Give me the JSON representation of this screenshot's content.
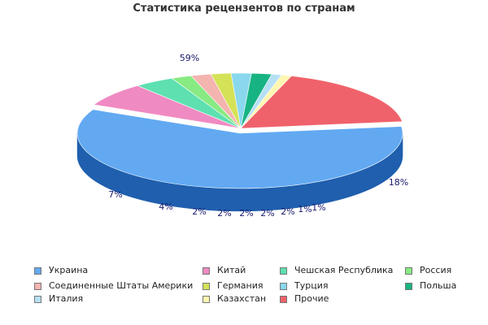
{
  "chart_data": {
    "type": "pie",
    "title": "Статистика рецензентов по странам",
    "slices": [
      {
        "label": "Украина",
        "value": 59,
        "display": "59%",
        "color": "#62a9f2",
        "dark": "#1f5fae"
      },
      {
        "label": "Китай",
        "value": 7,
        "display": "7%",
        "color": "#f08ac2",
        "dark": "#b3336f"
      },
      {
        "label": "Чешская Республика",
        "value": 4,
        "display": "4%",
        "color": "#5ee0b0",
        "dark": "#12884f"
      },
      {
        "label": "Россия",
        "value": 2,
        "display": "2%",
        "color": "#88ea82",
        "dark": "#3a962d"
      },
      {
        "label": "Соединенные Штаты Америки",
        "value": 2,
        "display": "2%",
        "color": "#f4b4b0",
        "dark": "#a85e5a"
      },
      {
        "label": "Германия",
        "value": 2,
        "display": "2%",
        "color": "#d4e257",
        "dark": "#80890c"
      },
      {
        "label": "Турция",
        "value": 2,
        "display": "2%",
        "color": "#8ad8ee",
        "dark": "#2d8aa2"
      },
      {
        "label": "Польша",
        "value": 2,
        "display": "2%",
        "color": "#18b383",
        "dark": "#09643f"
      },
      {
        "label": "Италия",
        "value": 1,
        "display": "1%",
        "color": "#b6e0f5",
        "dark": "#5a8ea6"
      },
      {
        "label": "Казахстан",
        "value": 1,
        "display": "1%",
        "color": "#fff6b0",
        "dark": "#ad9f50"
      },
      {
        "label": "Прочие",
        "value": 18,
        "display": "18%",
        "color": "#f0626b",
        "dark": "#9a0f14"
      }
    ],
    "legend_placement": "bottom"
  }
}
